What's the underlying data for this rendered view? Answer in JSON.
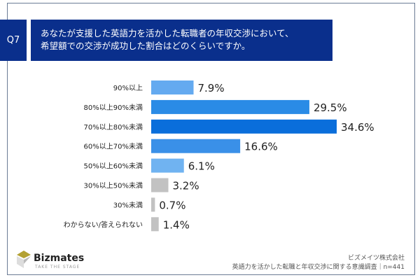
{
  "question": {
    "number": "Q7",
    "text_line1": "あなたが支援した英語力を活かした転職者の年収交渉において、",
    "text_line2": "希望額での交渉が成功した割合はどのくらいですか。"
  },
  "chart_data": {
    "type": "bar",
    "orientation": "horizontal",
    "xlim": [
      0,
      34.6
    ],
    "grid": false,
    "categories": [
      "90%以上",
      "80%以上90%未満",
      "70%以上80%未満",
      "60%以上70%未満",
      "50%以上60%未満",
      "30%以上50%未満",
      "30%未満",
      "わからない/答えられない"
    ],
    "values": [
      7.9,
      29.5,
      34.6,
      16.6,
      6.1,
      3.2,
      0.7,
      1.4
    ],
    "labels": [
      "7.9%",
      "29.5%",
      "34.6%",
      "16.6%",
      "6.1%",
      "3.2%",
      "0.7%",
      "1.4%"
    ],
    "colors": [
      "#64aaf0",
      "#2a8be6",
      "#0a6edb",
      "#3a90e8",
      "#70b3f1",
      "#c2c2c2",
      "#c2c2c2",
      "#c2c2c2"
    ]
  },
  "footer": {
    "brand": "Bizmates",
    "tagline": "TAKE THE STAGE",
    "company": "ビズメイツ株式会社",
    "source": "英語力を活かした転職と年収交渉に関する意識調査｜n=441"
  }
}
